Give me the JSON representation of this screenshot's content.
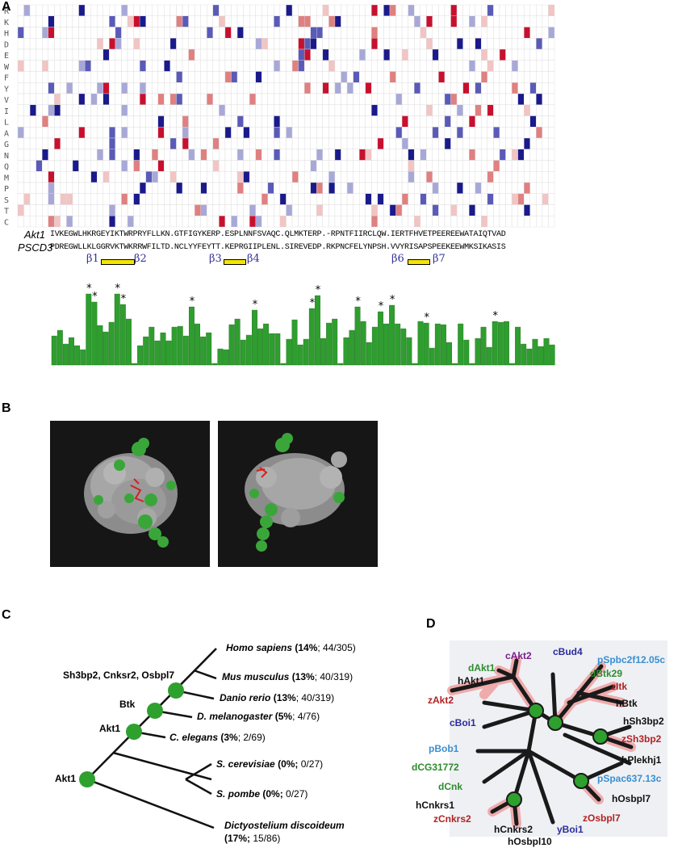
{
  "panels": {
    "a": "A",
    "b": "B",
    "c": "C",
    "d": "D"
  },
  "residues": [
    "R",
    "K",
    "H",
    "D",
    "E",
    "W",
    "F",
    "Y",
    "V",
    "I",
    "L",
    "A",
    "G",
    "N",
    "Q",
    "M",
    "P",
    "S",
    "T",
    "C"
  ],
  "sequences": {
    "akt1_name": "Akt1",
    "akt1_seq": "IVKEGWLHKRGEYIKTWRPRYFLLKN.GTFIGYKERP.ESPLNNFSVAQC.QLMKTERP.-RPNTFIIRCLQW.IERTFHVETPEEREEWATAIQTVAD",
    "pscd3_name": "PSCD3",
    "pscd3_seq": "PDREGWLLKLGGRVKTWKRRWFILTD.NCLYYFEYTT.KEPRGIIPLENL.SIREVEDP.RKPNCFELYNPSH.VVYRISAPSPEEKEEWMKSIKASIS"
  },
  "beta_strands": [
    "β1",
    "β2",
    "β3",
    "β4",
    "β6",
    "β7"
  ],
  "conservation_marker": "*",
  "colors": {
    "red": "#c8102e",
    "blue": "#1a1a8c",
    "green": "#2e9e2e",
    "node": "#2ea02e"
  },
  "tree": {
    "species": [
      {
        "name": "Homo sapiens",
        "pct": "14",
        "pct_text": "(14%",
        "count": "; 44/305)"
      },
      {
        "name": "Mus musculus",
        "pct": "13",
        "pct_text": "(13%",
        "count": "; 40/319)"
      },
      {
        "name": "Danio rerio",
        "pct": "13",
        "pct_text": "(13%",
        "count": "; 40/319)"
      },
      {
        "name": "D. melanogaster",
        "pct": "5",
        "pct_text": "(5%",
        "count": "; 4/76)"
      },
      {
        "name": "C. elegans",
        "pct": "3",
        "pct_text": "(3%",
        "count": "; 2/69)"
      },
      {
        "name": "S. cerevisiae",
        "pct": "0",
        "pct_text": "(0%;",
        "count": " 0/27)"
      },
      {
        "name": "S. pombe",
        "pct": "0",
        "pct_text": "(0%;",
        "count": " 0/27)"
      },
      {
        "name": "Dictyostelium discoideum",
        "pct": "17",
        "pct_text": "(17%;",
        "count": " 15/86)"
      }
    ],
    "node_labels": [
      "Sh3bp2, Cnksr2, Osbpl7",
      "Btk",
      "Akt1",
      "Akt1"
    ]
  },
  "unrooted_tree": {
    "labels": [
      {
        "text": "cAkt2",
        "color": "#7a1f8a"
      },
      {
        "text": "cBud4",
        "color": "#2b2b9a"
      },
      {
        "text": "pSpbc2f12.05c",
        "color": "#3a8fd0"
      },
      {
        "text": "dAkt1",
        "color": "#2e8b2e"
      },
      {
        "text": "dBtk29",
        "color": "#2e8b2e"
      },
      {
        "text": "hAkt1",
        "color": "#111111"
      },
      {
        "text": "zItk",
        "color": "#b22222"
      },
      {
        "text": "zAkt2",
        "color": "#b22222"
      },
      {
        "text": "hBtk",
        "color": "#111111"
      },
      {
        "text": "hSh3bp2",
        "color": "#111111"
      },
      {
        "text": "cBoi1",
        "color": "#2b2b9a"
      },
      {
        "text": "zSh3bp2",
        "color": "#b22222"
      },
      {
        "text": "pBob1",
        "color": "#3a8fd0"
      },
      {
        "text": "hPlekhj1",
        "color": "#111111"
      },
      {
        "text": "dCG31772",
        "color": "#2e8b2e"
      },
      {
        "text": "pSpac637.13c",
        "color": "#3a8fd0"
      },
      {
        "text": "dCnk",
        "color": "#2e8b2e"
      },
      {
        "text": "hCnkrs1",
        "color": "#111111"
      },
      {
        "text": "hOsbpl7",
        "color": "#111111"
      },
      {
        "text": "zCnkrs2",
        "color": "#b22222"
      },
      {
        "text": "zOsbpl7",
        "color": "#b22222"
      },
      {
        "text": "hCnkrs2",
        "color": "#111111"
      },
      {
        "text": "yBoi1",
        "color": "#2b2b9a"
      },
      {
        "text": "hOsbpl10",
        "color": "#111111"
      }
    ]
  }
}
